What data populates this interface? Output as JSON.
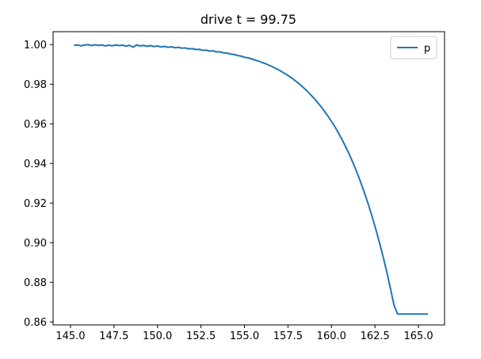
{
  "chart_data": {
    "type": "line",
    "title": "drive t = 99.75",
    "xlabel": "",
    "ylabel": "",
    "xlim": [
      144.0,
      166.5
    ],
    "ylim": [
      0.8585,
      1.0065
    ],
    "xticks": [
      145.0,
      147.5,
      150.0,
      152.5,
      155.0,
      157.5,
      160.0,
      162.5,
      165.0
    ],
    "xtick_labels": [
      "145.0",
      "147.5",
      "150.0",
      "152.5",
      "155.0",
      "157.5",
      "160.0",
      "162.5",
      "165.0"
    ],
    "yticks": [
      0.86,
      0.88,
      0.9,
      0.92,
      0.94,
      0.96,
      0.98,
      1.0
    ],
    "ytick_labels": [
      "0.86",
      "0.88",
      "0.90",
      "0.92",
      "0.94",
      "0.96",
      "0.98",
      "1.00"
    ],
    "grid": false,
    "legend_position": "upper right",
    "series": [
      {
        "name": "p",
        "color": "#1f77b4",
        "x": [
          145.2,
          145.4,
          145.6,
          145.8,
          146.0,
          146.2,
          146.4,
          146.6,
          146.8,
          147.0,
          147.2,
          147.4,
          147.6,
          147.8,
          148.0,
          148.2,
          148.4,
          148.6,
          148.8,
          149.0,
          149.2,
          149.4,
          149.6,
          149.8,
          150.0,
          150.2,
          150.4,
          150.6,
          150.8,
          151.0,
          151.2,
          151.4,
          151.6,
          151.8,
          152.0,
          152.2,
          152.4,
          152.6,
          152.8,
          153.0,
          153.2,
          153.4,
          153.6,
          153.8,
          154.0,
          154.2,
          154.4,
          154.6,
          154.8,
          155.0,
          155.2,
          155.4,
          155.6,
          155.8,
          156.0,
          156.2,
          156.4,
          156.6,
          156.8,
          157.0,
          157.2,
          157.4,
          157.6,
          157.8,
          158.0,
          158.2,
          158.4,
          158.6,
          158.8,
          159.0,
          159.2,
          159.4,
          159.6,
          159.8,
          160.0,
          160.2,
          160.4,
          160.6,
          160.8,
          161.0,
          161.2,
          161.4,
          161.6,
          161.8,
          162.0,
          162.2,
          162.4,
          162.6,
          162.8,
          163.0,
          163.2,
          163.4,
          163.6,
          163.8,
          164.0,
          164.2,
          164.4,
          164.6,
          164.8,
          165.0,
          165.2,
          165.4,
          165.55
        ],
        "values": [
          0.9996,
          0.9998,
          0.9994,
          0.9997,
          1.0,
          0.9995,
          0.9999,
          0.9996,
          0.9998,
          0.9993,
          0.9997,
          0.9994,
          0.9998,
          0.9995,
          0.9997,
          0.9992,
          0.9996,
          0.9987,
          0.9998,
          0.9993,
          0.9996,
          0.9991,
          0.9995,
          0.999,
          0.9993,
          0.9988,
          0.9991,
          0.9986,
          0.9989,
          0.9984,
          0.9986,
          0.9982,
          0.9983,
          0.9978,
          0.998,
          0.9975,
          0.9976,
          0.9971,
          0.9972,
          0.9967,
          0.9968,
          0.9963,
          0.9963,
          0.9958,
          0.9957,
          0.9952,
          0.995,
          0.9945,
          0.9942,
          0.9936,
          0.9933,
          0.9928,
          0.9922,
          0.9917,
          0.991,
          0.9904,
          0.9896,
          0.9889,
          0.9879,
          0.9871,
          0.986,
          0.985,
          0.9838,
          0.9826,
          0.9812,
          0.9798,
          0.9782,
          0.9766,
          0.9747,
          0.9729,
          0.9708,
          0.9687,
          0.9663,
          0.9639,
          0.9612,
          0.9585,
          0.9554,
          0.9522,
          0.9487,
          0.9451,
          0.9411,
          0.9369,
          0.9324,
          0.9276,
          0.9225,
          0.9171,
          0.9113,
          0.9052,
          0.8987,
          0.8918,
          0.8845,
          0.8765,
          0.8683,
          0.864,
          0.864,
          0.864,
          0.864,
          0.864,
          0.864,
          0.864,
          0.864,
          0.864,
          0.864
        ]
      }
    ]
  }
}
